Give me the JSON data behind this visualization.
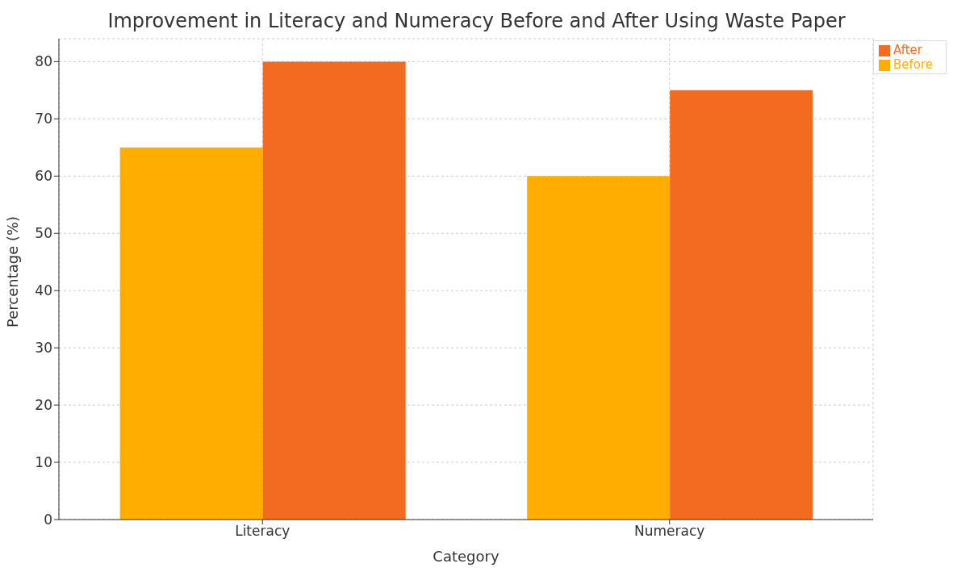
{
  "chart_data": {
    "type": "bar",
    "title": "Improvement in Literacy and Numeracy Before and After Using Waste Paper",
    "xlabel": "Category",
    "ylabel": "Percentage (%)",
    "categories": [
      "Literacy",
      "Numeracy"
    ],
    "series": [
      {
        "name": "Before",
        "color": "#ffae00",
        "values": [
          65,
          60
        ]
      },
      {
        "name": "After",
        "color": "#f26b21",
        "values": [
          80,
          75
        ]
      }
    ],
    "ylim": [
      0,
      84
    ],
    "yticks": [
      0,
      10,
      20,
      30,
      40,
      50,
      60,
      70,
      80
    ],
    "grid": true,
    "legend": "top right"
  }
}
